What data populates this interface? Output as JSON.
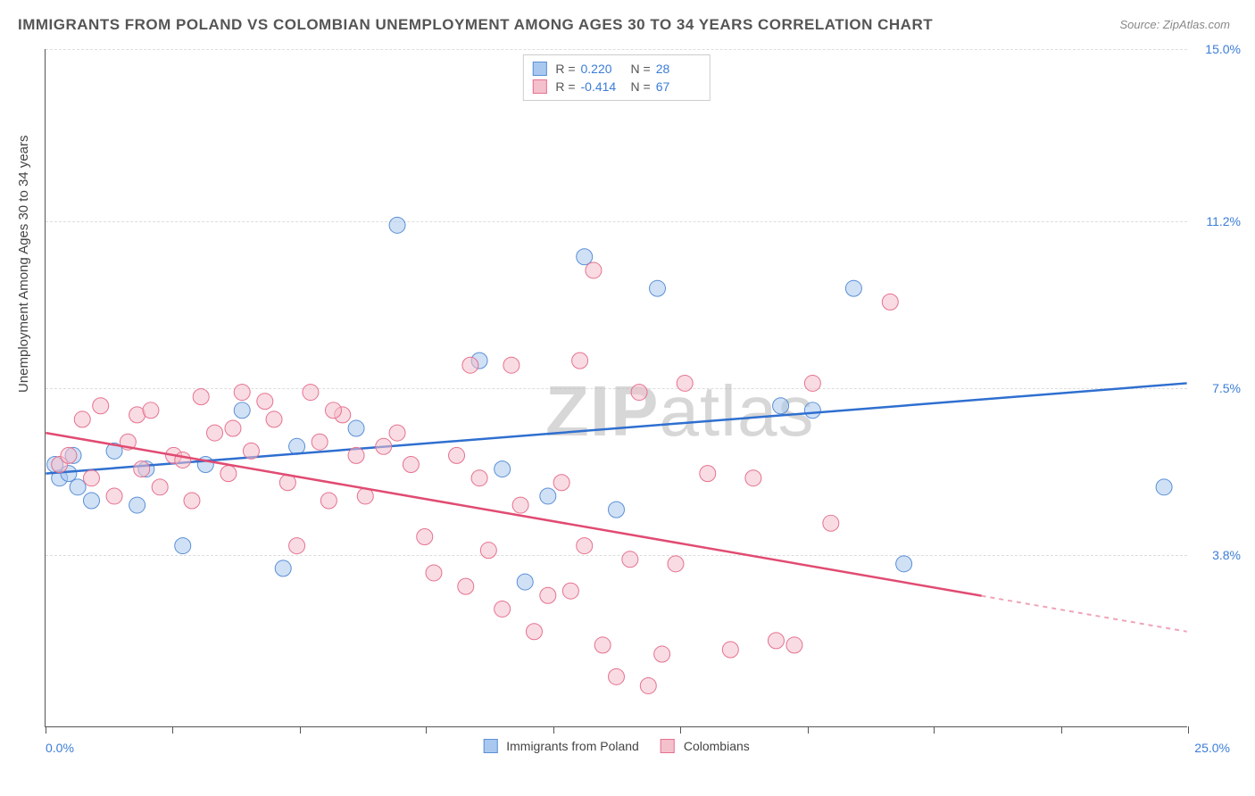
{
  "title": "IMMIGRANTS FROM POLAND VS COLOMBIAN UNEMPLOYMENT AMONG AGES 30 TO 34 YEARS CORRELATION CHART",
  "source": "Source: ZipAtlas.com",
  "ylabel": "Unemployment Among Ages 30 to 34 years",
  "watermark": {
    "bold": "ZIP",
    "light": "atlas"
  },
  "chart": {
    "type": "scatter-with-regression",
    "background_color": "#ffffff",
    "grid_color": "#dddddd",
    "axis_color": "#555555",
    "xlim": [
      0,
      25
    ],
    "ylim": [
      0,
      15
    ],
    "x_ticks_label_left": "0.0%",
    "x_ticks_label_right": "25.0%",
    "y_ticks": [
      {
        "value": 3.8,
        "label": "3.8%"
      },
      {
        "value": 7.5,
        "label": "7.5%"
      },
      {
        "value": 11.2,
        "label": "11.2%"
      },
      {
        "value": 15.0,
        "label": "15.0%"
      }
    ],
    "x_tick_positions": [
      0,
      2.78,
      5.56,
      8.33,
      11.11,
      13.89,
      16.67,
      19.44,
      22.22,
      25
    ],
    "marker_radius": 9,
    "marker_opacity": 0.55,
    "marker_stroke_width": 1,
    "series": [
      {
        "id": "poland",
        "label": "Immigrants from Poland",
        "fill": "#a9c8ef",
        "stroke": "#5a8fd6",
        "line_color": "#2f6fd0",
        "R": "0.220",
        "N": "28",
        "regression": {
          "x1": 0,
          "y1": 5.6,
          "x2": 25,
          "y2": 7.6,
          "solid_until_x": 25
        },
        "points": [
          [
            0.2,
            5.8
          ],
          [
            0.3,
            5.5
          ],
          [
            0.5,
            5.6
          ],
          [
            0.6,
            6.0
          ],
          [
            0.7,
            5.3
          ],
          [
            1.0,
            5.0
          ],
          [
            1.5,
            6.1
          ],
          [
            2.0,
            4.9
          ],
          [
            2.2,
            5.7
          ],
          [
            3.0,
            4.0
          ],
          [
            3.5,
            5.8
          ],
          [
            4.3,
            7.0
          ],
          [
            5.2,
            3.5
          ],
          [
            5.5,
            6.2
          ],
          [
            6.8,
            6.6
          ],
          [
            7.7,
            11.1
          ],
          [
            9.5,
            8.1
          ],
          [
            10.0,
            5.7
          ],
          [
            10.5,
            3.2
          ],
          [
            11.0,
            5.1
          ],
          [
            11.8,
            10.4
          ],
          [
            12.5,
            4.8
          ],
          [
            13.4,
            9.7
          ],
          [
            16.1,
            7.1
          ],
          [
            16.8,
            7.0
          ],
          [
            17.7,
            9.7
          ],
          [
            18.8,
            3.6
          ],
          [
            24.5,
            5.3
          ]
        ]
      },
      {
        "id": "colombians",
        "label": "Colombians",
        "fill": "#f4c0cc",
        "stroke": "#e6718f",
        "line_color": "#e14b72",
        "R": "-0.414",
        "N": "67",
        "regression": {
          "x1": 0,
          "y1": 6.5,
          "x2": 25,
          "y2": 2.1,
          "solid_until_x": 20.5
        },
        "points": [
          [
            0.3,
            5.8
          ],
          [
            0.5,
            6.0
          ],
          [
            0.8,
            6.8
          ],
          [
            1.0,
            5.5
          ],
          [
            1.2,
            7.1
          ],
          [
            1.5,
            5.1
          ],
          [
            1.8,
            6.3
          ],
          [
            2.0,
            6.9
          ],
          [
            2.1,
            5.7
          ],
          [
            2.3,
            7.0
          ],
          [
            2.5,
            5.3
          ],
          [
            2.8,
            6.0
          ],
          [
            3.0,
            5.9
          ],
          [
            3.2,
            5.0
          ],
          [
            3.4,
            7.3
          ],
          [
            3.7,
            6.5
          ],
          [
            4.0,
            5.6
          ],
          [
            4.3,
            7.4
          ],
          [
            4.5,
            6.1
          ],
          [
            4.8,
            7.2
          ],
          [
            5.0,
            6.8
          ],
          [
            5.3,
            5.4
          ],
          [
            5.5,
            4.0
          ],
          [
            5.8,
            7.4
          ],
          [
            6.0,
            6.3
          ],
          [
            6.2,
            5.0
          ],
          [
            6.5,
            6.9
          ],
          [
            6.8,
            6.0
          ],
          [
            7.0,
            5.1
          ],
          [
            7.4,
            6.2
          ],
          [
            7.7,
            6.5
          ],
          [
            8.0,
            5.8
          ],
          [
            8.3,
            4.2
          ],
          [
            8.5,
            3.4
          ],
          [
            9.0,
            6.0
          ],
          [
            9.2,
            3.1
          ],
          [
            9.5,
            5.5
          ],
          [
            9.7,
            3.9
          ],
          [
            10.0,
            2.6
          ],
          [
            10.2,
            8.0
          ],
          [
            10.4,
            4.9
          ],
          [
            10.7,
            2.1
          ],
          [
            11.0,
            2.9
          ],
          [
            11.3,
            5.4
          ],
          [
            11.5,
            3.0
          ],
          [
            11.8,
            4.0
          ],
          [
            12.0,
            10.1
          ],
          [
            12.2,
            1.8
          ],
          [
            12.5,
            1.1
          ],
          [
            12.8,
            3.7
          ],
          [
            13.0,
            7.4
          ],
          [
            13.2,
            0.9
          ],
          [
            13.5,
            1.6
          ],
          [
            13.8,
            3.6
          ],
          [
            14.0,
            7.6
          ],
          [
            14.5,
            5.6
          ],
          [
            15.0,
            1.7
          ],
          [
            15.5,
            5.5
          ],
          [
            16.0,
            1.9
          ],
          [
            16.4,
            1.8
          ],
          [
            16.8,
            7.6
          ],
          [
            17.2,
            4.5
          ],
          [
            18.5,
            9.4
          ],
          [
            11.7,
            8.1
          ],
          [
            9.3,
            8.0
          ],
          [
            6.3,
            7.0
          ],
          [
            4.1,
            6.6
          ]
        ]
      }
    ]
  },
  "legend_top_keys": {
    "R": "R =",
    "N": "N ="
  },
  "label_fontsize": 15,
  "axis_label_color": "#3b7dd8"
}
